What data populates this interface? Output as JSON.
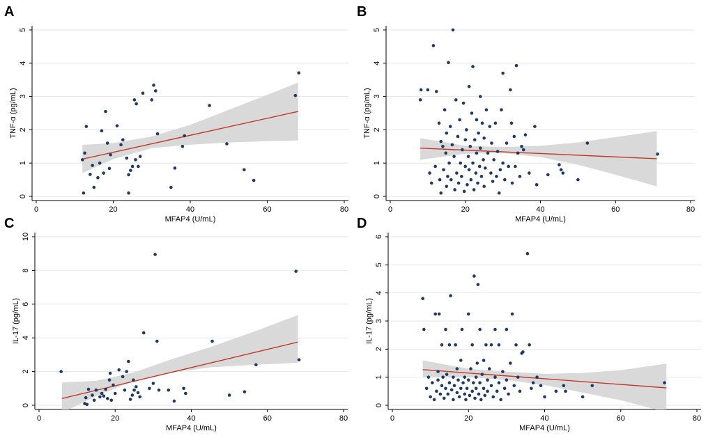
{
  "chart_data": [
    {
      "panel": "A",
      "type": "scatter",
      "xlabel": "MFAP4 (U/mL)",
      "ylabel": "TNF-α (pg/mL)",
      "xlim": [
        0,
        80
      ],
      "ylim": [
        0,
        5
      ],
      "xticks": [
        0,
        20,
        40,
        60,
        80
      ],
      "yticks": [
        0,
        1,
        2,
        3,
        4,
        5
      ],
      "fit": {
        "x": [
          12,
          68
        ],
        "y": [
          1.12,
          2.55
        ]
      },
      "ci": {
        "x": [
          12,
          20,
          30,
          40,
          50,
          60,
          68
        ],
        "lower": [
          0.7,
          1.12,
          1.45,
          1.55,
          1.62,
          1.66,
          1.68
        ],
        "upper": [
          1.55,
          1.6,
          1.8,
          2.15,
          2.6,
          3.05,
          3.42
        ]
      },
      "points": [
        [
          12,
          1.1
        ],
        [
          12.3,
          0.1
        ],
        [
          12.6,
          1.3
        ],
        [
          13,
          2.1
        ],
        [
          14,
          0.66
        ],
        [
          14.6,
          0.93
        ],
        [
          15,
          0.27
        ],
        [
          16,
          0.56
        ],
        [
          16.5,
          1.0
        ],
        [
          17,
          1.97
        ],
        [
          17.5,
          0.7
        ],
        [
          18,
          2.55
        ],
        [
          18.5,
          1.6
        ],
        [
          19,
          0.84
        ],
        [
          19.3,
          1.25
        ],
        [
          21,
          2.12
        ],
        [
          22,
          1.55
        ],
        [
          22.5,
          1.7
        ],
        [
          23.5,
          1.15
        ],
        [
          24,
          0.1
        ],
        [
          24,
          0.65
        ],
        [
          24.5,
          0.78
        ],
        [
          25,
          0.9
        ],
        [
          25.5,
          2.9
        ],
        [
          25.8,
          1.1
        ],
        [
          26,
          2.78
        ],
        [
          26.5,
          0.9
        ],
        [
          27,
          1.2
        ],
        [
          27.7,
          3.1
        ],
        [
          30,
          2.9
        ],
        [
          30.5,
          3.34
        ],
        [
          31,
          3.17
        ],
        [
          31.5,
          1.88
        ],
        [
          35,
          0.27
        ],
        [
          36,
          0.85
        ],
        [
          38,
          1.5
        ],
        [
          38.5,
          1.82
        ],
        [
          45,
          2.73
        ],
        [
          49.5,
          1.58
        ],
        [
          54,
          0.8
        ],
        [
          56.5,
          0.48
        ],
        [
          67.3,
          3.03
        ],
        [
          68.2,
          3.71
        ]
      ]
    },
    {
      "panel": "B",
      "type": "scatter",
      "xlabel": "MFAP4 (U/mL)",
      "ylabel": "TNF-α (pg/mL)",
      "xlim": [
        0,
        80
      ],
      "ylim": [
        0,
        5
      ],
      "xticks": [
        0,
        20,
        40,
        60,
        80
      ],
      "yticks": [
        0,
        1,
        2,
        3,
        4,
        5
      ],
      "fit": {
        "x": [
          8,
          71
        ],
        "y": [
          1.45,
          1.13
        ]
      },
      "ci": {
        "x": [
          8,
          20,
          30,
          40,
          50,
          60,
          71
        ],
        "lower": [
          1.1,
          1.28,
          1.3,
          1.18,
          0.95,
          0.65,
          0.3
        ],
        "upper": [
          1.75,
          1.52,
          1.48,
          1.52,
          1.62,
          1.78,
          1.96
        ]
      },
      "points": [
        [
          8,
          2.9
        ],
        [
          8.2,
          3.2
        ],
        [
          10,
          3.2
        ],
        [
          10.5,
          0.7
        ],
        [
          11,
          0.4
        ],
        [
          11.5,
          4.53
        ],
        [
          12,
          0.9
        ],
        [
          12.3,
          3.15
        ],
        [
          13,
          2.2
        ],
        [
          13.2,
          0.5
        ],
        [
          13.5,
          1.65
        ],
        [
          13.5,
          0.1
        ],
        [
          14,
          1.5
        ],
        [
          14.2,
          0.8
        ],
        [
          14.5,
          2.6
        ],
        [
          14.8,
          1.3
        ],
        [
          15,
          1.9
        ],
        [
          15,
          0.3
        ],
        [
          15.3,
          0.6
        ],
        [
          15.5,
          4.02
        ],
        [
          15.7,
          1.0
        ],
        [
          16,
          2.1
        ],
        [
          16.2,
          0.5
        ],
        [
          16.5,
          1.55
        ],
        [
          16.7,
          5.0
        ],
        [
          17,
          1.2
        ],
        [
          17.2,
          0.2
        ],
        [
          17.5,
          2.9
        ],
        [
          17.7,
          0.7
        ],
        [
          18,
          1.8
        ],
        [
          18.2,
          0.4
        ],
        [
          18.5,
          2.3
        ],
        [
          18.7,
          1.0
        ],
        [
          19,
          0.6
        ],
        [
          19.2,
          1.4
        ],
        [
          19.5,
          2.8
        ],
        [
          19.7,
          0.15
        ],
        [
          20,
          1.7
        ],
        [
          20,
          0.9
        ],
        [
          20.3,
          2.0
        ],
        [
          20.5,
          0.35
        ],
        [
          20.8,
          1.2
        ],
        [
          21,
          3.3
        ],
        [
          21,
          0.8
        ],
        [
          21.3,
          1.5
        ],
        [
          21.5,
          0.5
        ],
        [
          21.7,
          2.5
        ],
        [
          22,
          1.0
        ],
        [
          22,
          3.9
        ],
        [
          22.3,
          0.2
        ],
        [
          22.5,
          1.7
        ],
        [
          22.8,
          0.7
        ],
        [
          23,
          2.3
        ],
        [
          23,
          1.3
        ],
        [
          23.3,
          0.4
        ],
        [
          23.5,
          1.9
        ],
        [
          23.8,
          0.9
        ],
        [
          24,
          3.0
        ],
        [
          24,
          1.45
        ],
        [
          24.3,
          0.6
        ],
        [
          24.5,
          2.2
        ],
        [
          24.8,
          1.1
        ],
        [
          25,
          0.3
        ],
        [
          25,
          1.75
        ],
        [
          25.3,
          0.85
        ],
        [
          25.6,
          2.6
        ],
        [
          26,
          1.3
        ],
        [
          26.5,
          2.1
        ],
        [
          26.8,
          0.7
        ],
        [
          27,
          1.6
        ],
        [
          27.3,
          0.45
        ],
        [
          27.6,
          1.1
        ],
        [
          28,
          2.2
        ],
        [
          28.3,
          0.6
        ],
        [
          28.6,
          1.35
        ],
        [
          29,
          0.1
        ],
        [
          29.3,
          0.8
        ],
        [
          29.6,
          2.6
        ],
        [
          30,
          1.0
        ],
        [
          30,
          3.7
        ],
        [
          30.5,
          0.5
        ],
        [
          31,
          1.6
        ],
        [
          31.5,
          0.9
        ],
        [
          32,
          3.2
        ],
        [
          32.3,
          2.2
        ],
        [
          32.5,
          0.4
        ],
        [
          33,
          1.8
        ],
        [
          33.3,
          0.9
        ],
        [
          33.6,
          3.93
        ],
        [
          34,
          1.3
        ],
        [
          34.5,
          0.6
        ],
        [
          35,
          1.5
        ],
        [
          35.5,
          1.4
        ],
        [
          36,
          1.85
        ],
        [
          37,
          0.7
        ],
        [
          38.5,
          2.1
        ],
        [
          39,
          0.35
        ],
        [
          42,
          0.65
        ],
        [
          45,
          0.95
        ],
        [
          45.5,
          0.8
        ],
        [
          46,
          0.7
        ],
        [
          50,
          0.5
        ],
        [
          52.5,
          1.6
        ],
        [
          71.2,
          1.27
        ]
      ]
    },
    {
      "panel": "C",
      "type": "scatter",
      "xlabel": "MFAP4 (U/mL)",
      "ylabel": "IL-17 (pg/mL)",
      "xlim": [
        0,
        80
      ],
      "ylim": [
        0,
        10
      ],
      "xticks": [
        0,
        20,
        40,
        60,
        80
      ],
      "yticks": [
        0,
        2,
        4,
        6,
        8,
        10
      ],
      "fit": {
        "x": [
          6,
          68
        ],
        "y": [
          0.4,
          3.75
        ]
      },
      "ci": {
        "x": [
          6,
          15,
          25,
          35,
          45,
          55,
          68
        ],
        "lower": [
          -0.45,
          0.55,
          1.45,
          1.95,
          2.25,
          2.38,
          2.52
        ],
        "upper": [
          1.35,
          1.45,
          1.95,
          2.75,
          3.45,
          4.25,
          5.35
        ]
      },
      "points": [
        [
          5.8,
          2.0
        ],
        [
          12,
          0.1
        ],
        [
          12.3,
          0.45
        ],
        [
          12.6,
          0.05
        ],
        [
          13,
          0.95
        ],
        [
          14,
          0.6
        ],
        [
          14.5,
          0.3
        ],
        [
          15,
          0.9
        ],
        [
          16,
          0.5
        ],
        [
          16.5,
          0.7
        ],
        [
          17,
          0.55
        ],
        [
          17.5,
          0.95
        ],
        [
          18,
          0.4
        ],
        [
          18.5,
          1.5
        ],
        [
          18.7,
          1.9
        ],
        [
          19,
          0.3
        ],
        [
          19.5,
          1.2
        ],
        [
          20,
          0.7
        ],
        [
          21,
          2.1
        ],
        [
          22,
          1.7
        ],
        [
          22.5,
          0.9
        ],
        [
          23,
          2.0
        ],
        [
          23.5,
          2.6
        ],
        [
          24,
          0.35
        ],
        [
          24.5,
          0.6
        ],
        [
          24.8,
          1.5
        ],
        [
          25,
          0.9
        ],
        [
          25.5,
          1.1
        ],
        [
          26,
          0.75
        ],
        [
          26.5,
          0.5
        ],
        [
          27.5,
          4.3
        ],
        [
          29,
          1.0
        ],
        [
          30,
          1.3
        ],
        [
          30.5,
          8.95
        ],
        [
          31,
          3.8
        ],
        [
          31.5,
          0.9
        ],
        [
          34,
          0.9
        ],
        [
          35.5,
          0.25
        ],
        [
          38,
          1.0
        ],
        [
          38.5,
          0.7
        ],
        [
          45.5,
          3.8
        ],
        [
          50,
          0.6
        ],
        [
          54,
          0.8
        ],
        [
          57,
          2.4
        ],
        [
          67.5,
          7.95
        ],
        [
          68.3,
          2.7
        ]
      ]
    },
    {
      "panel": "D",
      "type": "scatter",
      "xlabel": "MFAP4 (U/mL)",
      "ylabel": "IL-17 (pg/mL)",
      "xlim": [
        0,
        80
      ],
      "ylim": [
        0,
        6
      ],
      "xticks": [
        0,
        20,
        40,
        60,
        80
      ],
      "yticks": [
        0,
        1,
        2,
        3,
        4,
        5,
        6
      ],
      "fit": {
        "x": [
          8,
          72
        ],
        "y": [
          1.27,
          0.62
        ]
      },
      "ci": {
        "x": [
          8,
          20,
          30,
          40,
          50,
          60,
          72
        ],
        "lower": [
          1.0,
          1.0,
          0.9,
          0.72,
          0.45,
          0.18,
          -0.25
        ],
        "upper": [
          1.6,
          1.3,
          1.2,
          1.12,
          1.15,
          1.25,
          1.48
        ]
      },
      "points": [
        [
          8,
          3.8
        ],
        [
          8.3,
          2.7
        ],
        [
          9,
          0.6
        ],
        [
          9.5,
          1.0
        ],
        [
          10,
          0.3
        ],
        [
          10.5,
          0.8
        ],
        [
          11,
          0.2
        ],
        [
          11.3,
          3.25
        ],
        [
          11.6,
          0.5
        ],
        [
          12,
          1.2
        ],
        [
          12,
          0.9
        ],
        [
          12.3,
          3.25
        ],
        [
          12.6,
          0.4
        ],
        [
          13,
          0.7
        ],
        [
          13,
          2.15
        ],
        [
          13.3,
          1.0
        ],
        [
          13.6,
          0.25
        ],
        [
          14,
          0.6
        ],
        [
          14,
          2.7
        ],
        [
          14.3,
          1.1
        ],
        [
          14.6,
          0.4
        ],
        [
          15,
          0.8
        ],
        [
          15,
          2.15
        ],
        [
          15.3,
          3.9
        ],
        [
          15.6,
          0.55
        ],
        [
          16,
          0.2
        ],
        [
          16,
          1.0
        ],
        [
          16.3,
          0.7
        ],
        [
          16.6,
          2.15
        ],
        [
          17,
          0.45
        ],
        [
          17,
          1.3
        ],
        [
          17.3,
          0.9
        ],
        [
          17.6,
          0.3
        ],
        [
          18,
          0.6
        ],
        [
          18,
          1.6
        ],
        [
          18.3,
          2.7
        ],
        [
          18.6,
          0.8
        ],
        [
          19,
          0.4
        ],
        [
          19,
          1.0
        ],
        [
          19.3,
          0.2
        ],
        [
          19.6,
          0.6
        ],
        [
          20,
          3.25
        ],
        [
          20,
          0.9
        ],
        [
          20.3,
          0.35
        ],
        [
          20.6,
          1.3
        ],
        [
          21,
          0.5
        ],
        [
          21,
          2.15
        ],
        [
          21.3,
          0.8
        ],
        [
          21.5,
          4.6
        ],
        [
          21.7,
          0.25
        ],
        [
          22,
          1.0
        ],
        [
          22,
          0.6
        ],
        [
          22.3,
          1.5
        ],
        [
          22.5,
          4.3
        ],
        [
          22.7,
          0.4
        ],
        [
          23,
          0.8
        ],
        [
          23,
          2.7
        ],
        [
          23.3,
          0.2
        ],
        [
          23.6,
          1.1
        ],
        [
          24,
          0.6
        ],
        [
          24,
          1.6
        ],
        [
          24.3,
          0.35
        ],
        [
          24.6,
          2.15
        ],
        [
          25,
          0.9
        ],
        [
          25,
          0.5
        ],
        [
          25.5,
          1.3
        ],
        [
          26,
          0.7
        ],
        [
          26,
          2.15
        ],
        [
          26.5,
          0.3
        ],
        [
          27,
          1.0
        ],
        [
          27,
          2.7
        ],
        [
          27.5,
          0.5
        ],
        [
          28,
          0.8
        ],
        [
          28,
          2.15
        ],
        [
          28.5,
          0.2
        ],
        [
          29,
          1.2
        ],
        [
          29.5,
          0.6
        ],
        [
          30,
          2.7
        ],
        [
          30,
          0.9
        ],
        [
          30.5,
          0.4
        ],
        [
          31,
          1.5
        ],
        [
          31.5,
          3.25
        ],
        [
          32,
          0.7
        ],
        [
          32.5,
          2.15
        ],
        [
          33,
          1.0
        ],
        [
          33.5,
          0.5
        ],
        [
          34,
          1.85
        ],
        [
          34.3,
          1.9
        ],
        [
          35.5,
          5.4
        ],
        [
          36,
          2.15
        ],
        [
          36.5,
          0.6
        ],
        [
          37,
          0.8
        ],
        [
          38,
          1.0
        ],
        [
          39,
          0.7
        ],
        [
          40,
          0.3
        ],
        [
          43,
          0.5
        ],
        [
          45,
          0.7
        ],
        [
          45.5,
          0.5
        ],
        [
          50,
          0.3
        ],
        [
          52.5,
          0.7
        ],
        [
          71.5,
          0.8
        ]
      ]
    }
  ]
}
